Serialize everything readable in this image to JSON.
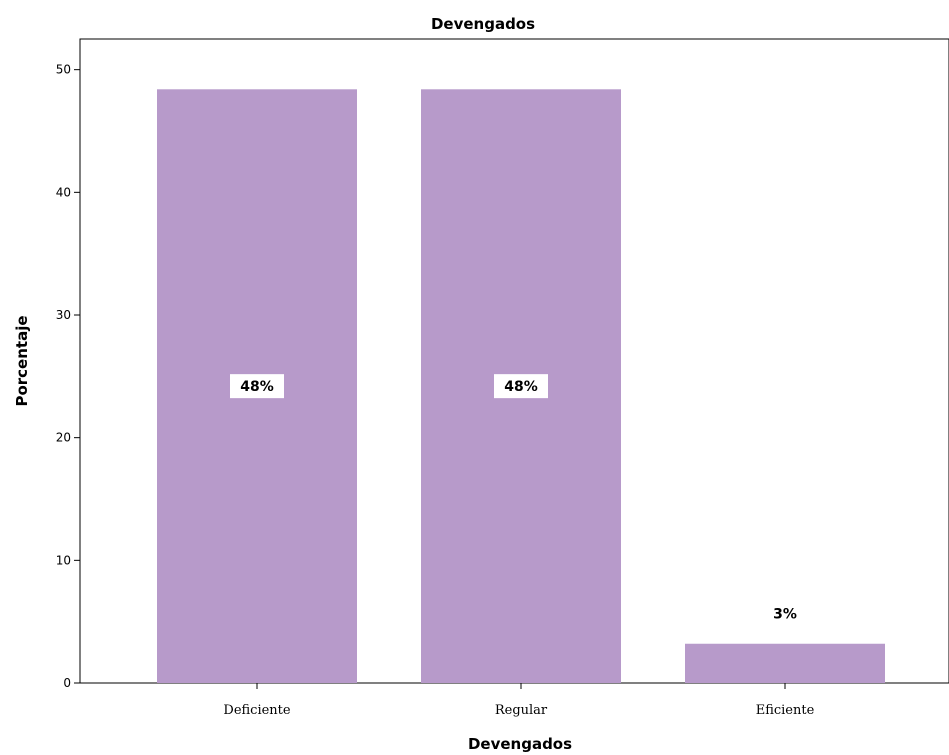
{
  "chart_data": {
    "type": "bar",
    "title": "Devengados",
    "xlabel": "Devengados",
    "ylabel": "Porcentaje",
    "categories": [
      "Deficiente",
      "Regular",
      "Eficiente"
    ],
    "values": [
      48.4,
      48.4,
      3.2
    ],
    "data_labels": [
      "48%",
      "48%",
      "3%"
    ],
    "ylim": [
      0,
      52.5
    ],
    "yticks": [
      0,
      10,
      20,
      30,
      40,
      50
    ],
    "bar_color": "#b79aca",
    "grid": false,
    "legend": "none"
  }
}
